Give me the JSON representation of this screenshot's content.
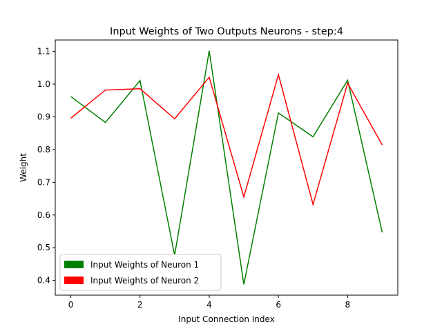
{
  "chart_data": {
    "type": "line",
    "title": "Input Weights of Two Outputs Neurons - step:4",
    "xlabel": "Input Connection Index",
    "ylabel": "Weight",
    "x": [
      0,
      1,
      2,
      3,
      4,
      5,
      6,
      7,
      8,
      9
    ],
    "xlim": [
      -0.45,
      9.45
    ],
    "ylim": [
      0.355,
      1.135
    ],
    "xticks": [
      0,
      2,
      4,
      6,
      8
    ],
    "yticks": [
      0.4,
      0.5,
      0.6,
      0.7,
      0.8,
      0.9,
      1.0,
      1.1
    ],
    "xtick_labels": [
      "0",
      "2",
      "4",
      "6",
      "8"
    ],
    "ytick_labels": [
      "0.4",
      "0.5",
      "0.6",
      "0.7",
      "0.8",
      "0.9",
      "1.0",
      "1.1"
    ],
    "grid": false,
    "legend_position": "lower-left",
    "series": [
      {
        "name": "Input Weights of Neuron 1",
        "color": "#008000",
        "values": [
          0.962,
          0.883,
          1.011,
          0.477,
          1.102,
          0.388,
          0.912,
          0.839,
          1.012,
          0.547
        ]
      },
      {
        "name": "Input Weights of Neuron 2",
        "color": "#ff0000",
        "values": [
          0.896,
          0.982,
          0.986,
          0.894,
          1.021,
          0.655,
          1.029,
          0.632,
          1.003,
          0.814
        ]
      }
    ]
  }
}
